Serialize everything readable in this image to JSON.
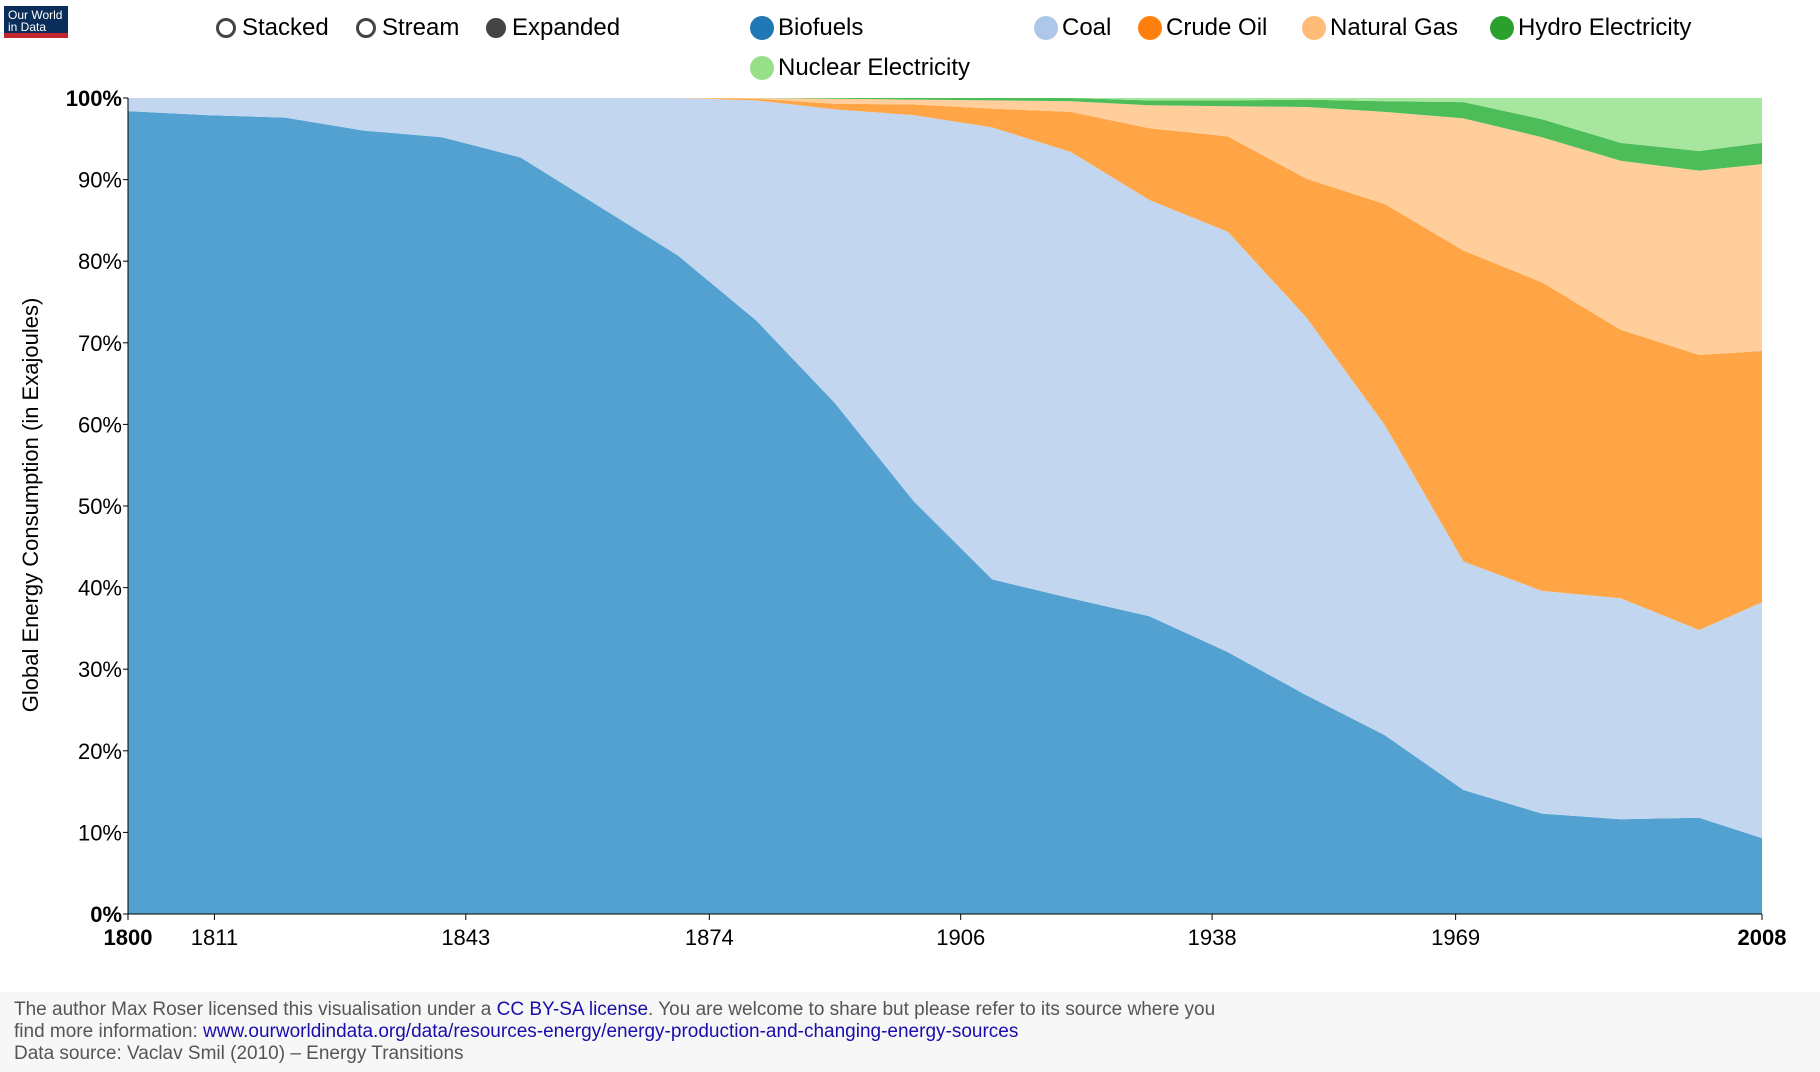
{
  "logo": {
    "line1": "Our World",
    "line2": "in Data"
  },
  "toggles": [
    {
      "label": "Stacked",
      "selected": false
    },
    {
      "label": "Stream",
      "selected": false
    },
    {
      "label": "Expanded",
      "selected": true
    }
  ],
  "chart_data": {
    "type": "area",
    "stacking": "expanded",
    "ylabel": "Global Energy Consumption (in Exajoules)",
    "xlabel": "",
    "xlim": [
      1800,
      2008
    ],
    "ylim": [
      0,
      100
    ],
    "x_ticks": [
      "1800",
      "1811",
      "1843",
      "1874",
      "1906",
      "1938",
      "1969",
      "2008"
    ],
    "y_ticks": [
      "0%",
      "10%",
      "20%",
      "30%",
      "40%",
      "50%",
      "60%",
      "70%",
      "80%",
      "90%",
      "100%"
    ],
    "legend_position": "top",
    "x": [
      1800,
      1810,
      1820,
      1830,
      1840,
      1850,
      1860,
      1870,
      1880,
      1890,
      1900,
      1910,
      1920,
      1930,
      1940,
      1950,
      1960,
      1970,
      1980,
      1990,
      2000,
      2008
    ],
    "series": [
      {
        "name": "Biofuels",
        "color": "#1f77b4",
        "fill": "#53a1d1",
        "values": [
          98.4,
          97.9,
          97.6,
          96.0,
          95.2,
          92.7,
          86.7,
          80.7,
          72.7,
          62.6,
          50.6,
          41.0,
          38.7,
          36.5,
          32.1,
          26.8,
          21.9,
          15.2,
          12.3,
          11.6,
          11.8,
          9.3
        ]
      },
      {
        "name": "Coal",
        "color": "#aec7e8",
        "fill": "#c2d7ef",
        "values": [
          1.6,
          2.1,
          2.4,
          4.0,
          4.8,
          7.3,
          13.3,
          19.3,
          27.0,
          36.0,
          47.3,
          55.4,
          54.7,
          51.0,
          51.5,
          46.3,
          38.0,
          28.0,
          27.3,
          27.1,
          23.0,
          28.9
        ]
      },
      {
        "name": "Crude Oil",
        "color": "#ff7f0e",
        "fill": "#ffa545",
        "values": [
          0,
          0,
          0,
          0,
          0,
          0,
          0,
          0,
          0.2,
          0.7,
          1.3,
          2.3,
          4.9,
          8.8,
          11.7,
          17.0,
          27.1,
          38.1,
          37.8,
          32.9,
          33.7,
          30.8
        ]
      },
      {
        "name": "Natural Gas",
        "color": "#ffbb78",
        "fill": "#ffce9b",
        "values": [
          0,
          0,
          0,
          0,
          0,
          0,
          0,
          0,
          0.1,
          0.6,
          0.6,
          1.0,
          1.3,
          2.8,
          3.7,
          8.8,
          11.3,
          16.2,
          17.8,
          20.7,
          22.6,
          22.9
        ]
      },
      {
        "name": "Hydro Electricity",
        "color": "#2ca02c",
        "fill": "#4dbd59",
        "values": [
          0,
          0,
          0,
          0,
          0,
          0,
          0,
          0,
          0,
          0.1,
          0.2,
          0.3,
          0.4,
          0.6,
          0.7,
          0.9,
          1.3,
          2.0,
          2.2,
          2.2,
          2.4,
          2.6
        ]
      },
      {
        "name": "Nuclear Electricity",
        "color": "#98df8a",
        "fill": "#a6e69f",
        "values": [
          0,
          0,
          0,
          0,
          0,
          0,
          0,
          0,
          0,
          0,
          0,
          0,
          0,
          0.3,
          0.3,
          0.2,
          0.4,
          0.5,
          2.6,
          5.5,
          6.5,
          5.5
        ]
      }
    ]
  },
  "footer": {
    "line1_pre": "The author Max Roser licensed this visualisation under a ",
    "license_link": "CC BY-SA license",
    "line1_post": ". You are welcome to share but please refer to its source where you",
    "line2_pre": "find more information: ",
    "source_link": "www.ourworldindata.org/data/resources-energy/energy-production-and-changing-energy-sources",
    "line3": "Data source: Vaclav Smil (2010) – Energy Transitions"
  }
}
